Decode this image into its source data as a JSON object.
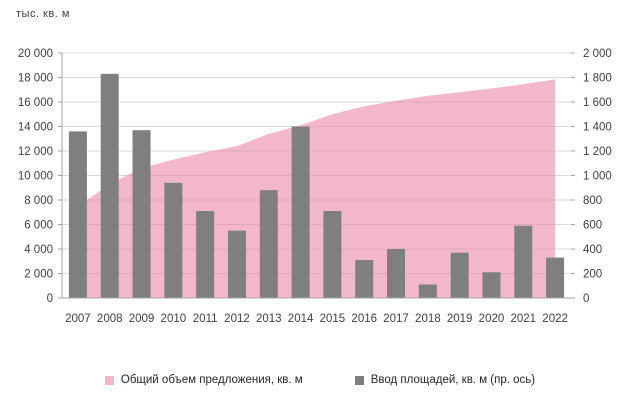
{
  "chart_data": {
    "type": "combo-area-bar",
    "unit_label": "тыс. кв. м",
    "categories": [
      "2007",
      "2008",
      "2009",
      "2010",
      "2011",
      "2012",
      "2013",
      "2014",
      "2015",
      "2016",
      "2017",
      "2018",
      "2019",
      "2020",
      "2021",
      "2022"
    ],
    "series": [
      {
        "name": "Общий объем предложения, кв. м",
        "type": "area",
        "axis": "left",
        "color": "#E87D9C",
        "fill_opacity": 0.55,
        "legend_color": "#F2B7C8",
        "values": [
          7500,
          9300,
          10600,
          11300,
          11900,
          12400,
          13400,
          14100,
          15000,
          15650,
          16100,
          16500,
          16800,
          17100,
          17450,
          17850
        ]
      },
      {
        "name": "Ввод площадей, кв. м (пр. ось)",
        "type": "bar",
        "axis": "right",
        "color": "#7F7F7F",
        "legend_color": "#7F7F7F",
        "values": [
          1360,
          1830,
          1370,
          940,
          710,
          550,
          880,
          1400,
          710,
          310,
          400,
          110,
          370,
          210,
          590,
          330
        ]
      }
    ],
    "left_axis": {
      "min": 0,
      "max": 20000,
      "step": 2000,
      "tick_labels": [
        "20 000",
        "18 000",
        "16 000",
        "14 000",
        "12 000",
        "10 000",
        "8 000",
        "6 000",
        "4 000",
        "2 000",
        "0"
      ]
    },
    "right_axis": {
      "min": 0,
      "max": 2000,
      "step": 200,
      "tick_labels": [
        "2 000",
        "1 800",
        "1 600",
        "1 400",
        "1 200",
        "1 000",
        "800",
        "600",
        "400",
        "200",
        "0"
      ]
    },
    "grid": true,
    "legend_position": "bottom"
  },
  "colors": {
    "gridline": "#D9D9D9",
    "axis_line": "#A6A6A6",
    "tick_text": "#404040",
    "legend_text": "#262626",
    "background": "#FFFFFF"
  }
}
